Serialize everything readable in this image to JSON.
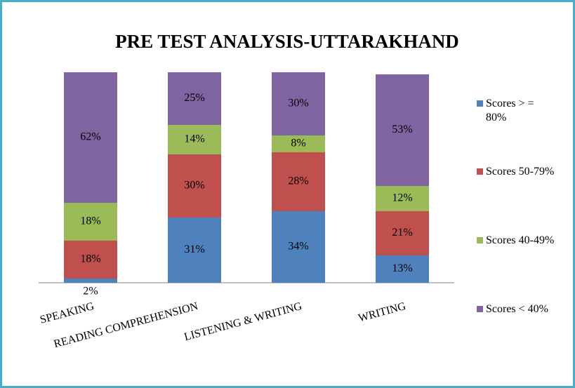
{
  "chart_data": {
    "type": "stacked_bar",
    "title": "PRE TEST ANALYSIS-UTTARAKHAND",
    "categories": [
      "SPEAKING",
      "READING COMPREHENSION",
      "LISTENING & WRITING",
      "WRITING"
    ],
    "series": [
      {
        "name": "Scores > = 80%",
        "color": "#4f81bd",
        "values": [
          2,
          31,
          34,
          13
        ],
        "value_labels": [
          "2%",
          "31%",
          "34%",
          "13%"
        ]
      },
      {
        "name": "Scores 50-79%",
        "color": "#c0504d",
        "values": [
          18,
          30,
          28,
          21
        ],
        "value_labels": [
          "18%",
          "30%",
          "28%",
          "21%"
        ]
      },
      {
        "name": "Scores 40-49%",
        "color": "#9bbb59",
        "values": [
          18,
          14,
          8,
          12
        ],
        "value_labels": [
          "18%",
          "14%",
          "8%",
          "12%"
        ]
      },
      {
        "name": "Scores < 40%",
        "color": "#8064a2",
        "values": [
          62,
          25,
          30,
          53
        ],
        "value_labels": [
          "62%",
          "25%",
          "30%",
          "53%"
        ]
      }
    ],
    "legend": "right"
  }
}
